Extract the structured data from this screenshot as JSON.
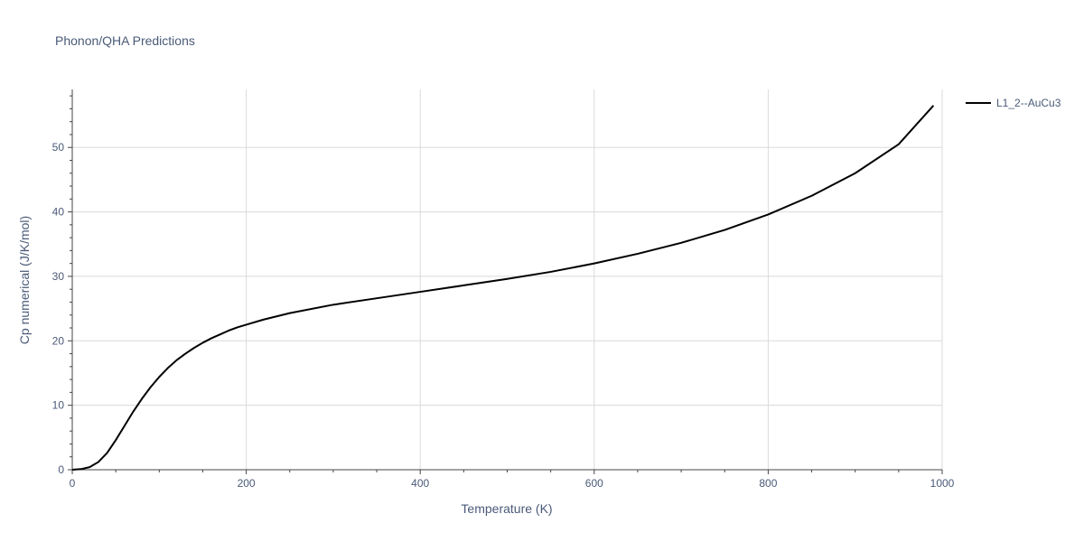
{
  "chart_data": {
    "type": "line",
    "title": "Phonon/QHA Predictions",
    "xlabel": "Temperature (K)",
    "ylabel": "Cp numerical (J/K/mol)",
    "xlim": [
      0,
      1000
    ],
    "ylim": [
      0,
      59
    ],
    "x_ticks": [
      0,
      200,
      400,
      600,
      800,
      1000
    ],
    "y_ticks": [
      0,
      10,
      20,
      30,
      40,
      50
    ],
    "grid": true,
    "legend_position": "top-right",
    "series": [
      {
        "name": "L1_2--AuCu3",
        "color": "#000000",
        "x": [
          0,
          10,
          20,
          30,
          40,
          50,
          60,
          70,
          80,
          90,
          100,
          110,
          120,
          130,
          140,
          150,
          160,
          170,
          180,
          190,
          200,
          220,
          250,
          300,
          350,
          400,
          450,
          500,
          550,
          600,
          650,
          700,
          750,
          800,
          850,
          900,
          950,
          990
        ],
        "y": [
          0,
          0.1,
          0.4,
          1.2,
          2.6,
          4.6,
          6.8,
          9.0,
          11.0,
          12.8,
          14.4,
          15.8,
          17.0,
          18.0,
          18.9,
          19.7,
          20.4,
          21.0,
          21.6,
          22.1,
          22.5,
          23.3,
          24.3,
          25.6,
          26.6,
          27.6,
          28.6,
          29.6,
          30.7,
          32.0,
          33.5,
          35.2,
          37.2,
          39.6,
          42.5,
          46.0,
          50.5,
          56.5
        ]
      }
    ]
  }
}
